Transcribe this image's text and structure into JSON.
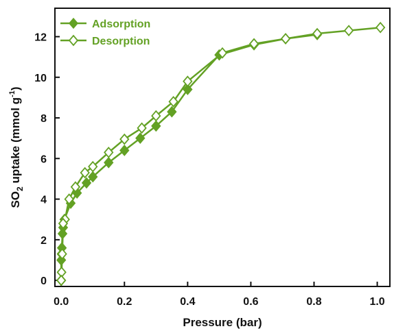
{
  "chart_data": {
    "type": "line",
    "xlabel": "Pressure (bar)",
    "ylabel_main": "SO",
    "ylabel_sub": "2",
    "ylabel_rest": " uptake (mmol g",
    "ylabel_sup": "-1",
    "ylabel_close": ")",
    "xlim": [
      -0.02,
      1.04
    ],
    "ylim": [
      -0.3,
      13.4
    ],
    "xticks": [
      "0.0",
      "0.2",
      "0.4",
      "0.6",
      "0.8",
      "1.0"
    ],
    "yticks": [
      "0",
      "2",
      "4",
      "6",
      "8",
      "10",
      "12"
    ],
    "grid": false,
    "legend_position": "top-left",
    "color": "#63a124",
    "series": [
      {
        "name": "Adsorption",
        "marker": "filled-diamond",
        "x": [
          0.0,
          0.0,
          0.001,
          0.002,
          0.004,
          0.006,
          0.01,
          0.03,
          0.05,
          0.08,
          0.1,
          0.15,
          0.2,
          0.25,
          0.3,
          0.35,
          0.4,
          0.5,
          0.61,
          0.71,
          0.81
        ],
        "y": [
          0.0,
          1.0,
          1.3,
          1.6,
          2.3,
          2.6,
          3.0,
          3.8,
          4.3,
          4.8,
          5.1,
          5.8,
          6.4,
          7.0,
          7.6,
          8.3,
          9.4,
          11.1,
          11.6,
          11.9,
          12.1
        ]
      },
      {
        "name": "Desorption",
        "marker": "open-diamond",
        "x": [
          1.01,
          0.91,
          0.81,
          0.71,
          0.61,
          0.51,
          0.4,
          0.355,
          0.3,
          0.255,
          0.2,
          0.15,
          0.1,
          0.075,
          0.045,
          0.025,
          0.012,
          0.006,
          0.003,
          0.001,
          0.0
        ],
        "y": [
          12.45,
          12.3,
          12.15,
          11.9,
          11.65,
          11.2,
          9.8,
          8.8,
          8.1,
          7.5,
          6.95,
          6.3,
          5.6,
          5.3,
          4.6,
          4.0,
          3.0,
          2.8,
          1.3,
          0.4,
          0.0
        ]
      }
    ]
  }
}
